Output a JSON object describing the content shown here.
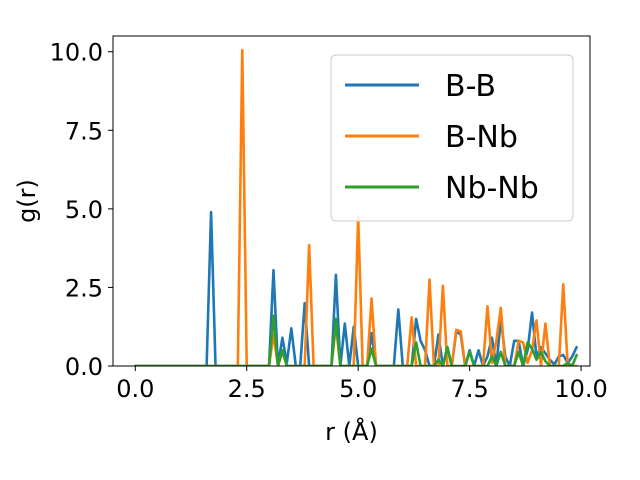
{
  "chart_data": {
    "type": "line",
    "title": "",
    "xlabel": "r (Å)",
    "ylabel": "g(r)",
    "xlim": [
      -0.5,
      10.2
    ],
    "ylim": [
      0,
      10.5
    ],
    "xticks": [
      0,
      2.5,
      5,
      7.5,
      10
    ],
    "xtick_labels": [
      "0.0",
      "2.5",
      "5.0",
      "7.5",
      "10.0"
    ],
    "yticks": [
      0,
      2.5,
      5,
      7.5,
      10
    ],
    "ytick_labels": [
      "0.0",
      "2.5",
      "5.0",
      "7.5",
      "10.0"
    ],
    "grid": false,
    "legend_position": "top-right",
    "series": [
      {
        "name": "B-B",
        "color": "#1f77b4",
        "points": [
          [
            0.0,
            0
          ],
          [
            1.6,
            0
          ],
          [
            1.7,
            4.9
          ],
          [
            1.8,
            0
          ],
          [
            3.0,
            0
          ],
          [
            3.1,
            3.05
          ],
          [
            3.2,
            0
          ],
          [
            3.3,
            0.9
          ],
          [
            3.4,
            0.1
          ],
          [
            3.5,
            1.2
          ],
          [
            3.6,
            0
          ],
          [
            3.7,
            0
          ],
          [
            3.8,
            2.0
          ],
          [
            3.9,
            0
          ],
          [
            4.4,
            0
          ],
          [
            4.5,
            2.9
          ],
          [
            4.6,
            0
          ],
          [
            4.7,
            1.35
          ],
          [
            4.8,
            0
          ],
          [
            4.9,
            1.25
          ],
          [
            5.0,
            0
          ],
          [
            5.2,
            0
          ],
          [
            5.3,
            1.05
          ],
          [
            5.4,
            0
          ],
          [
            5.8,
            0
          ],
          [
            5.9,
            1.8
          ],
          [
            6.0,
            0
          ],
          [
            6.2,
            0
          ],
          [
            6.3,
            1.5
          ],
          [
            6.4,
            0.8
          ],
          [
            6.5,
            0.5
          ],
          [
            6.6,
            0
          ],
          [
            6.7,
            0
          ],
          [
            6.8,
            1.0
          ],
          [
            6.9,
            0
          ],
          [
            7.0,
            0.6
          ],
          [
            7.1,
            0
          ],
          [
            7.2,
            1.1
          ],
          [
            7.3,
            1.0
          ],
          [
            7.4,
            0
          ],
          [
            7.5,
            0.5
          ],
          [
            7.6,
            0
          ],
          [
            7.7,
            0.5
          ],
          [
            7.8,
            0
          ],
          [
            7.9,
            0.3
          ],
          [
            8.0,
            0.9
          ],
          [
            8.1,
            0
          ],
          [
            8.2,
            1.5
          ],
          [
            8.3,
            0.3
          ],
          [
            8.4,
            0
          ],
          [
            8.5,
            0.8
          ],
          [
            8.6,
            0.8
          ],
          [
            8.7,
            0
          ],
          [
            8.8,
            0.5
          ],
          [
            8.9,
            1.7
          ],
          [
            9.0,
            0.3
          ],
          [
            9.1,
            0.6
          ],
          [
            9.2,
            0.4
          ],
          [
            9.3,
            0.2
          ],
          [
            9.4,
            0.05
          ],
          [
            9.5,
            0.3
          ],
          [
            9.6,
            0.35
          ],
          [
            9.7,
            0.1
          ],
          [
            9.8,
            0.3
          ],
          [
            9.9,
            0.6
          ]
        ]
      },
      {
        "name": "B-Nb",
        "color": "#ff7f0e",
        "points": [
          [
            0.0,
            0
          ],
          [
            2.3,
            0
          ],
          [
            2.4,
            10.05
          ],
          [
            2.5,
            0
          ],
          [
            3.0,
            0
          ],
          [
            3.1,
            1.0
          ],
          [
            3.2,
            0
          ],
          [
            3.3,
            0.45
          ],
          [
            3.4,
            0
          ],
          [
            3.8,
            0
          ],
          [
            3.9,
            3.85
          ],
          [
            4.0,
            0
          ],
          [
            4.4,
            0
          ],
          [
            4.5,
            1.3
          ],
          [
            4.6,
            0
          ],
          [
            4.9,
            0
          ],
          [
            5.0,
            4.75
          ],
          [
            5.1,
            0
          ],
          [
            5.2,
            0
          ],
          [
            5.3,
            2.15
          ],
          [
            5.4,
            0
          ],
          [
            6.1,
            0
          ],
          [
            6.2,
            1.55
          ],
          [
            6.3,
            0
          ],
          [
            6.5,
            0
          ],
          [
            6.6,
            2.75
          ],
          [
            6.7,
            0
          ],
          [
            6.8,
            0
          ],
          [
            6.9,
            2.55
          ],
          [
            7.0,
            0
          ],
          [
            7.1,
            0
          ],
          [
            7.2,
            1.15
          ],
          [
            7.3,
            1.1
          ],
          [
            7.4,
            0
          ],
          [
            7.8,
            0
          ],
          [
            7.9,
            1.9
          ],
          [
            8.0,
            0.1
          ],
          [
            8.1,
            0.8
          ],
          [
            8.2,
            1.85
          ],
          [
            8.3,
            0
          ],
          [
            8.5,
            0
          ],
          [
            8.6,
            0.8
          ],
          [
            8.7,
            0.75
          ],
          [
            8.8,
            0.1
          ],
          [
            8.9,
            0.5
          ],
          [
            9.0,
            1.45
          ],
          [
            9.1,
            0
          ],
          [
            9.2,
            1.35
          ],
          [
            9.3,
            0
          ],
          [
            9.5,
            0
          ],
          [
            9.6,
            2.6
          ],
          [
            9.7,
            0
          ],
          [
            9.9,
            0
          ]
        ]
      },
      {
        "name": "Nb-Nb",
        "color": "#2ca02c",
        "points": [
          [
            0.0,
            0
          ],
          [
            3.0,
            0
          ],
          [
            3.1,
            1.6
          ],
          [
            3.2,
            0
          ],
          [
            3.3,
            0.5
          ],
          [
            3.4,
            0
          ],
          [
            4.4,
            0
          ],
          [
            4.5,
            1.5
          ],
          [
            4.6,
            0
          ],
          [
            5.2,
            0
          ],
          [
            5.3,
            0.55
          ],
          [
            5.4,
            0
          ],
          [
            6.2,
            0
          ],
          [
            6.3,
            0.75
          ],
          [
            6.4,
            0
          ],
          [
            6.7,
            0
          ],
          [
            6.8,
            0.2
          ],
          [
            6.9,
            0
          ],
          [
            7.0,
            0.6
          ],
          [
            7.1,
            0
          ],
          [
            7.4,
            0
          ],
          [
            7.5,
            0.45
          ],
          [
            7.6,
            0
          ],
          [
            7.9,
            0
          ],
          [
            8.0,
            0.3
          ],
          [
            8.1,
            0
          ],
          [
            8.2,
            0.45
          ],
          [
            8.3,
            0
          ],
          [
            8.5,
            0
          ],
          [
            8.6,
            0.45
          ],
          [
            8.7,
            0
          ],
          [
            8.8,
            0.75
          ],
          [
            8.9,
            0.55
          ],
          [
            9.0,
            0.2
          ],
          [
            9.1,
            0.45
          ],
          [
            9.2,
            0.15
          ],
          [
            9.3,
            0
          ],
          [
            9.6,
            0
          ],
          [
            9.7,
            0.1
          ],
          [
            9.8,
            0
          ],
          [
            9.9,
            0.35
          ]
        ]
      }
    ]
  }
}
